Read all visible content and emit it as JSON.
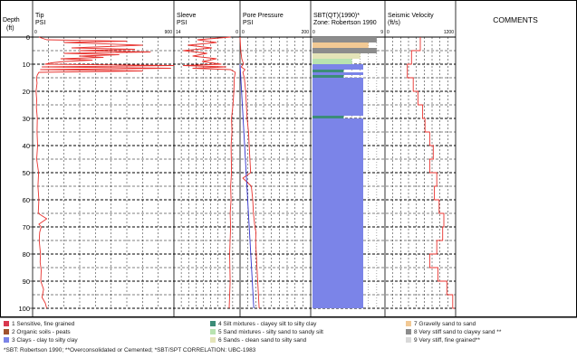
{
  "chart_data": {
    "type": "line",
    "depth_axis": {
      "label_line1": "Depth",
      "label_line2": "(ft)",
      "range": [
        0,
        100
      ],
      "ticks": [
        0,
        10,
        20,
        30,
        40,
        50,
        60,
        70,
        80,
        90,
        100
      ],
      "grid_interval": 5
    },
    "tracks": [
      {
        "key": "tip",
        "title_line1": "Tip",
        "title_line2": "PSI",
        "range": [
          0,
          900
        ],
        "range_labels": [
          "0",
          "900"
        ],
        "series": [
          {
            "color": "#e8322e",
            "depth": [
              0,
              1,
              1.5,
              2,
              3,
              4,
              4.5,
              5,
              5.5,
              6,
              6.5,
              7,
              7.5,
              8,
              8.5,
              9,
              9.5,
              10,
              10.5,
              11,
              11.5,
              12,
              12.5,
              13,
              14,
              15,
              17,
              20,
              23,
              26,
              30,
              35,
              40,
              45,
              50,
              55,
              60,
              65,
              67,
              69,
              70,
              72,
              75,
              80,
              83,
              86,
              90,
              93,
              96,
              98,
              100
            ],
            "value": [
              40,
              90,
              600,
              200,
              700,
              250,
              650,
              300,
              750,
              200,
              550,
              300,
              450,
              180,
              380,
              200,
              120,
              80,
              900,
              60,
              880,
              50,
              700,
              40,
              30,
              25,
              28,
              22,
              26,
              24,
              30,
              28,
              32,
              26,
              38,
              34,
              40,
              36,
              90,
              40,
              55,
              45,
              42,
              50,
              48,
              55,
              52,
              70,
              60,
              80,
              90
            ]
          }
        ]
      },
      {
        "key": "sleeve",
        "title_line1": "Sleeve",
        "title_line2": "PSI",
        "range": [
          0,
          14
        ],
        "range_labels": [
          "14",
          "0"
        ],
        "series": [
          {
            "color": "#e8322e",
            "depth": [
              0,
              1,
              2,
              3,
              4,
              5,
              6,
              7,
              8,
              9,
              10,
              10.5,
              11,
              11.5,
              12,
              13,
              15,
              20,
              25,
              30,
              35,
              40,
              50,
              55,
              60,
              65,
              70,
              80,
              90,
              100
            ],
            "value": [
              2,
              9,
              5,
              11,
              6,
              12,
              7,
              10,
              5,
              8,
              4,
              12,
              3,
              10,
              2,
              1,
              1.2,
              1.3,
              1.5,
              1.8,
              1.7,
              1.9,
              1.8,
              2.0,
              1.9,
              2.1,
              2.0,
              2.2,
              2.1,
              2.3
            ]
          }
        ]
      },
      {
        "key": "pore",
        "title_line1": "Pore Pressure",
        "title_line2": "PSI",
        "range": [
          0,
          200
        ],
        "range_labels": [
          "0",
          "200"
        ],
        "series": [
          {
            "color": "#e8322e",
            "depth": [
              0,
              5,
              8,
              10,
              11,
              12,
              13,
              15,
              20,
              25,
              30,
              35,
              40,
              45,
              50,
              52,
              55,
              60,
              65,
              70,
              72,
              75,
              80,
              85,
              90,
              95,
              100
            ],
            "value": [
              0,
              2,
              5,
              10,
              3,
              14,
              8,
              12,
              16,
              18,
              20,
              24,
              26,
              28,
              30,
              8,
              32,
              36,
              38,
              42,
              45,
              44,
              46,
              48,
              50,
              52,
              54
            ]
          },
          {
            "color": "#3333cc",
            "depth": [
              10,
              100
            ],
            "value": [
              0,
              39
            ]
          }
        ]
      },
      {
        "key": "sbt",
        "title_line1": "SBT(QT)(1990)*",
        "title_line2": "Zone: Robertson 1990",
        "range": [
          0,
          9
        ],
        "range_labels": [
          "0",
          "9"
        ]
      },
      {
        "key": "vs",
        "title_line1": "Seismic Velocity",
        "title_line2": "(ft/s)",
        "range": [
          0,
          1200
        ],
        "range_labels": [
          "0",
          "1200"
        ],
        "series": [
          {
            "color": "#e8322e",
            "step": true,
            "depth": [
              0,
              5,
              10,
              15,
              20,
              25,
              30,
              35,
              40,
              45,
              50,
              55,
              60,
              65,
              70,
              75,
              80,
              85,
              90,
              95,
              100
            ],
            "value": [
              600,
              450,
              380,
              480,
              560,
              640,
              680,
              760,
              820,
              760,
              880,
              840,
              920,
              1000,
              980,
              880,
              760,
              900,
              1050,
              1150,
              1180
            ]
          }
        ]
      }
    ],
    "sbt_zones": [
      {
        "top": 0,
        "bottom": 2,
        "zone": 8
      },
      {
        "top": 2,
        "bottom": 4,
        "zone": 7
      },
      {
        "top": 4,
        "bottom": 6,
        "zone": 8
      },
      {
        "top": 6,
        "bottom": 8,
        "zone": 6
      },
      {
        "top": 8,
        "bottom": 10,
        "zone": 5
      },
      {
        "top": 10,
        "bottom": 12,
        "zone": 3
      },
      {
        "top": 12,
        "bottom": 13,
        "zone": 4
      },
      {
        "top": 13,
        "bottom": 14,
        "zone": 3
      },
      {
        "top": 14,
        "bottom": 15,
        "zone": 4
      },
      {
        "top": 15,
        "bottom": 29,
        "zone": 3
      },
      {
        "top": 29,
        "bottom": 30,
        "zone": 4
      },
      {
        "top": 30,
        "bottom": 100,
        "zone": 3
      }
    ],
    "comments_title": "COMMENTS",
    "legend": [
      {
        "zone": 1,
        "label": "1 Sensitive, fine grained",
        "color": "#d9384e"
      },
      {
        "zone": 2,
        "label": "2 Organic soils - peats",
        "color": "#a0522d"
      },
      {
        "zone": 3,
        "label": "3 Clays - clay to silty clay",
        "color": "#7b84e8"
      },
      {
        "zone": 4,
        "label": "4 Silt mixtures - clayey silt to silty clay",
        "color": "#3c8c78"
      },
      {
        "zone": 5,
        "label": "5 Sand mixtures - silty sand to sandy silt",
        "color": "#b8e3b0"
      },
      {
        "zone": 6,
        "label": "6 Sands - clean sand to silty sand",
        "color": "#e4e4b8"
      },
      {
        "zone": 7,
        "label": "7 Gravelly sand to sand",
        "color": "#f2c994"
      },
      {
        "zone": 8,
        "label": "8 Very stiff sand to clayey sand **",
        "color": "#8c8c8c"
      },
      {
        "zone": 9,
        "label": "9 Very stiff, fine grained**",
        "color": "#d9d9d9"
      }
    ],
    "footnote": "*SBT: Robertson 1990; **Overconsolidated or Cemented; *SBT/SPT CORRELATION: UBC-1983"
  }
}
